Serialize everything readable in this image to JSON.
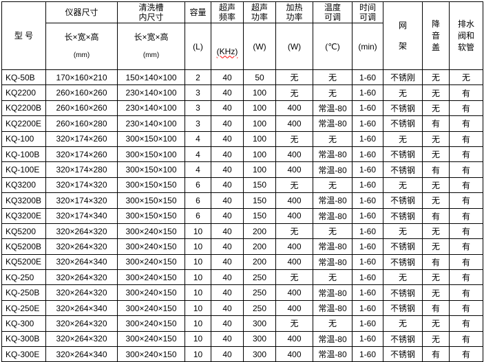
{
  "colors": {
    "border": "#000000",
    "text": "#000000",
    "background": "#ffffff",
    "spellcheck_underline": "#ff0000"
  },
  "table": {
    "header": {
      "model": "型 号",
      "instrument_size": "仪器尺寸",
      "tank_size": "清洗槽\n内尺寸",
      "dims_label": "长×宽×高",
      "dims_unit": "(mm)",
      "capacity": "容量",
      "capacity_unit": "(L)",
      "frequency": "超声\n频率",
      "frequency_unit": "(KHz)",
      "us_power": "超声\n功率",
      "us_power_unit": "(W)",
      "heat_power": "加热\n功率",
      "heat_power_unit": "(W)",
      "temp_adjust": "温度\n可调",
      "temp_unit": "(℃)",
      "time_adjust": "时间\n可调",
      "time_unit": "(min)",
      "rack": "网\n架",
      "cover": "降\n音\n盖",
      "drain": "排水\n阀和\n软管"
    },
    "rows": [
      [
        "KQ-50B",
        "170×160×210",
        "150×140×100",
        "2",
        "40",
        "50",
        "无",
        "无",
        "1-60",
        "不锈刚",
        "无",
        "无"
      ],
      [
        "KQ2200",
        "260×160×260",
        "230×140×100",
        "3",
        "40",
        "100",
        "无",
        "无",
        "1-60",
        "无",
        "无",
        "有"
      ],
      [
        "KQ2200B",
        "260×160×260",
        "230×140×100",
        "3",
        "40",
        "100",
        "400",
        "常温-80",
        "1-60",
        "不锈钢",
        "无",
        "有"
      ],
      [
        "KQ2200E",
        "260×160×280",
        "230×140×100",
        "3",
        "40",
        "100",
        "400",
        "常温-80",
        "1-60",
        "不锈钢",
        "有",
        "有"
      ],
      [
        "KQ-100",
        "320×174×260",
        "300×150×100",
        "4",
        "40",
        "100",
        "无",
        "无",
        "1-60",
        "无",
        "无",
        "有"
      ],
      [
        "KQ-100B",
        "320×174×260",
        "300×150×100",
        "4",
        "40",
        "100",
        "400",
        "常温-80",
        "1-60",
        "不锈钢",
        "无",
        "有"
      ],
      [
        "KQ-100E",
        "320×174×280",
        "300×150×100",
        "4",
        "40",
        "100",
        "400",
        "常温-80",
        "1-60",
        "不锈钢",
        "有",
        "有"
      ],
      [
        "KQ3200",
        "320×174×320",
        "300×150×150",
        "6",
        "40",
        "150",
        "无",
        "无",
        "1-60",
        "无",
        "无",
        "有"
      ],
      [
        "KQ3200B",
        "320×174×320",
        "300×150×150",
        "6",
        "40",
        "150",
        "400",
        "常温-80",
        "1-60",
        "不锈钢",
        "无",
        "有"
      ],
      [
        "KQ3200E",
        "320×174×340",
        "300×150×150",
        "6",
        "40",
        "150",
        "400",
        "常温-80",
        "1-60",
        "不锈钢",
        "有",
        "有"
      ],
      [
        "KQ5200",
        "320×264×320",
        "300×240×150",
        "10",
        "40",
        "200",
        "无",
        "无",
        "1-60",
        "无",
        "无",
        "有"
      ],
      [
        "KQ5200B",
        "320×264×320",
        "300×240×150",
        "10",
        "40",
        "200",
        "400",
        "常温-80",
        "1-60",
        "不锈钢",
        "无",
        "有"
      ],
      [
        "KQ5200E",
        "320×264×340",
        "300×240×150",
        "10",
        "40",
        "200",
        "400",
        "常温-80",
        "1-60",
        "不锈钢",
        "有",
        "有"
      ],
      [
        "KQ-250",
        "320×264×320",
        "300×240×150",
        "10",
        "40",
        "250",
        "无",
        "无",
        "1-60",
        "无",
        "无",
        "有"
      ],
      [
        "KQ-250B",
        "320×264×320",
        "300×240×150",
        "10",
        "40",
        "250",
        "400",
        "常温-80",
        "1-60",
        "不锈钢",
        "无",
        "有"
      ],
      [
        "KQ-250E",
        "320×264×340",
        "300×240×150",
        "10",
        "40",
        "250",
        "400",
        "常温-80",
        "1-60",
        "不锈钢",
        "有",
        "有"
      ],
      [
        "KQ-300",
        "320×264×320",
        "300×240×150",
        "10",
        "40",
        "300",
        "无",
        "无",
        "1-60",
        "无",
        "无",
        "有"
      ],
      [
        "KQ-300B",
        "320×264×320",
        "300×240×150",
        "10",
        "40",
        "300",
        "400",
        "常温-80",
        "1-60",
        "不锈钢",
        "无",
        "有"
      ],
      [
        "KQ-300E",
        "320×264×340",
        "300×240×150",
        "10",
        "40",
        "300",
        "400",
        "常温-80",
        "1-60",
        "不锈钢",
        "有",
        "有"
      ]
    ]
  }
}
